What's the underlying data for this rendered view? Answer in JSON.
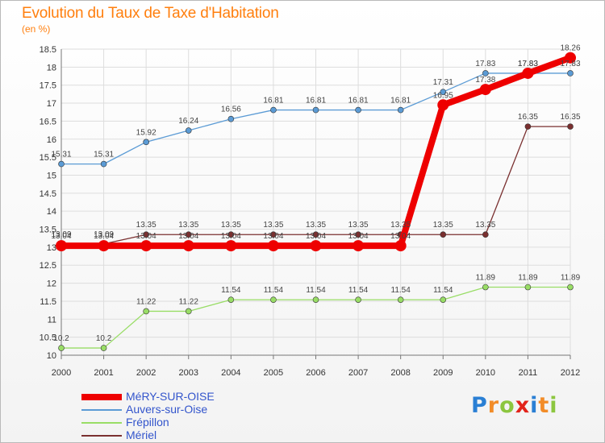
{
  "header": {
    "title": "Evolution du Taux de Taxe d'Habitation",
    "subtitle": "(en %)"
  },
  "colors": {
    "title": "#ff7f0e",
    "legend_text": "#3355cc",
    "grid": "#dddddd"
  },
  "logo": {
    "text": "Proxiti",
    "letters": [
      {
        "ch": "P",
        "color": "#2a7fd4"
      },
      {
        "ch": "r",
        "color": "#f28c28"
      },
      {
        "ch": "o",
        "color": "#8cc63f"
      },
      {
        "ch": "x",
        "color": "#e2231a"
      },
      {
        "ch": "i",
        "color": "#2a7fd4"
      },
      {
        "ch": "t",
        "color": "#f28c28"
      },
      {
        "ch": "i",
        "color": "#8cc63f"
      }
    ]
  },
  "chart_data": {
    "type": "line",
    "x": [
      2000,
      2001,
      2002,
      2003,
      2004,
      2005,
      2006,
      2007,
      2008,
      2009,
      2010,
      2011,
      2012
    ],
    "ylim": [
      10,
      18.5
    ],
    "yticks": [
      10,
      10.5,
      11,
      11.5,
      12,
      12.5,
      13,
      13.5,
      14,
      14.5,
      15,
      15.5,
      16,
      16.5,
      17,
      17.5,
      18,
      18.5
    ],
    "grid": true,
    "legend_position": "bottom-left",
    "series": [
      {
        "name": "MéRY-SUR-OISE",
        "color": "#ee0000",
        "width": 8,
        "dot": 7,
        "values": [
          13.04,
          13.04,
          13.04,
          13.04,
          13.04,
          13.04,
          13.04,
          13.04,
          13.04,
          16.95,
          17.38,
          17.83,
          18.26
        ]
      },
      {
        "name": "Auvers-sur-Oise",
        "color": "#5b9bd5",
        "width": 1.3,
        "dot": 3.5,
        "values": [
          15.31,
          15.31,
          15.92,
          16.24,
          16.56,
          16.81,
          16.81,
          16.81,
          16.81,
          17.31,
          17.83,
          17.83,
          17.83
        ]
      },
      {
        "name": "Frépillon",
        "color": "#99dd66",
        "width": 1.3,
        "dot": 3.5,
        "values": [
          10.2,
          10.2,
          11.22,
          11.22,
          11.54,
          11.54,
          11.54,
          11.54,
          11.54,
          11.54,
          11.89,
          11.89,
          11.89
        ]
      },
      {
        "name": "Mériel",
        "color": "#7a3030",
        "width": 1.3,
        "dot": 3.5,
        "values": [
          13.09,
          13.09,
          13.35,
          13.35,
          13.35,
          13.35,
          13.35,
          13.35,
          13.35,
          13.35,
          13.35,
          16.35,
          16.35
        ]
      }
    ],
    "data_labels": [
      {
        "series": 0,
        "text": [
          "13.04",
          "13.04",
          "13.04",
          "13.04",
          "13.04",
          "13.04",
          "13.04",
          "13.04",
          "13.04",
          "16.95",
          "17.38",
          "17.83",
          "18.26"
        ]
      },
      {
        "series": 1,
        "text": [
          "15.31",
          "15.31",
          "15.92",
          "16.24",
          "16.56",
          "16.81",
          "16.81",
          "16.81",
          "16.81",
          "17.31",
          "17.83",
          "17.83",
          "17.83"
        ]
      },
      {
        "series": 2,
        "text": [
          "10.2",
          "10.2",
          "11.22",
          "11.22",
          "11.54",
          "11.54",
          "11.54",
          "11.54",
          "11.54",
          "11.54",
          "11.89",
          "11.89",
          "11.89"
        ]
      },
      {
        "series": 3,
        "text": [
          "13.09",
          "13.09",
          "13.35",
          "13.35",
          "13.35",
          "13.35",
          "13.35",
          "13.35",
          "13.35",
          "13.35",
          "13.35",
          "16.35",
          "16.35"
        ]
      }
    ]
  }
}
